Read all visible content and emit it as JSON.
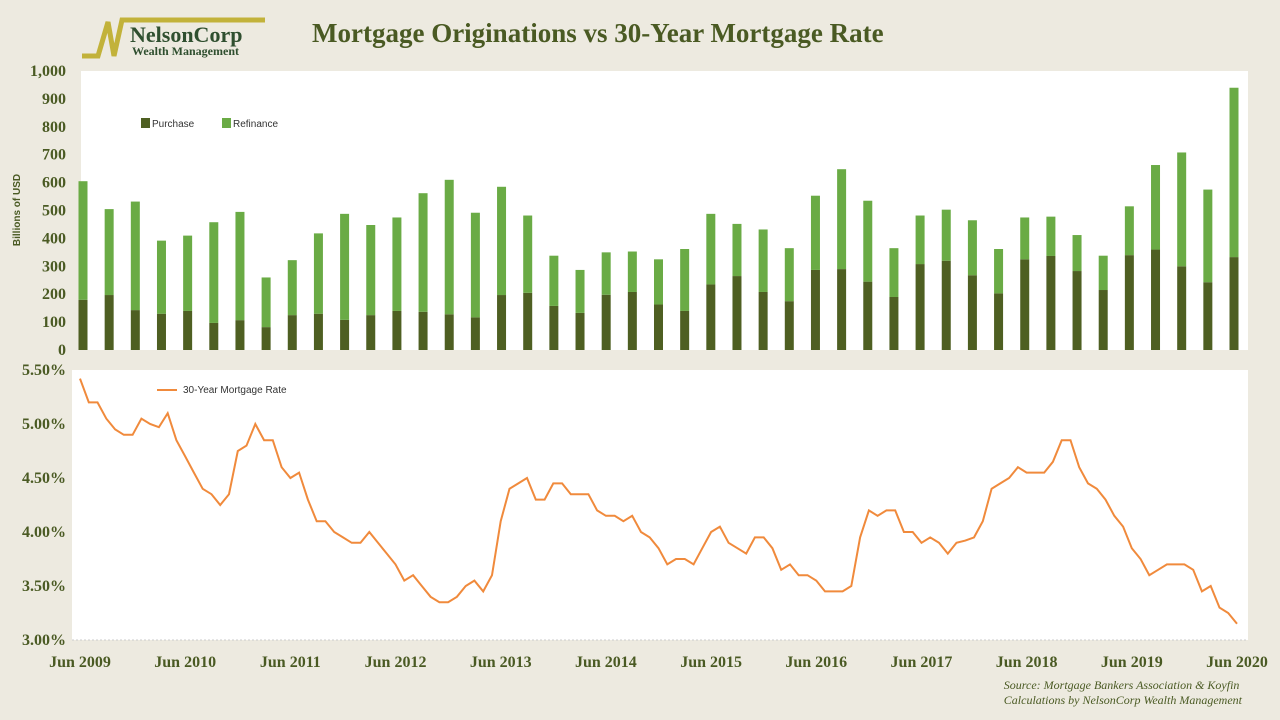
{
  "header": {
    "title": "Mortgage Originations vs 30-Year Mortgage Rate",
    "logo_name": "NelsonCorp",
    "logo_sub": "Wealth Management"
  },
  "source": {
    "line1": "Source: Mortgage Bankers Association & Koyfin",
    "line2": "Calculations by NelsonCorp Wealth Management"
  },
  "colors": {
    "purchase": "#4e5f22",
    "refinance": "#6aab45",
    "rate": "#f08a3c",
    "text": "#4a5a23"
  },
  "chart_data": [
    {
      "type": "bar",
      "stacked": true,
      "ylabel": "Billions of USD",
      "ylim": [
        0,
        1000
      ],
      "yticks": [
        "0",
        "100",
        "200",
        "300",
        "400",
        "500",
        "600",
        "700",
        "800",
        "900",
        "1,000"
      ],
      "legend": [
        "Purchase",
        "Refinance"
      ],
      "legend_placement": "top-left",
      "periods": "quarterly Q2 2009 - Q2 2020",
      "series": [
        {
          "name": "Purchase",
          "values": [
            180,
            197,
            143,
            130,
            140,
            97,
            107,
            82,
            125,
            130,
            108,
            125,
            140,
            137,
            128,
            117,
            197,
            205,
            158,
            133,
            198,
            208,
            163,
            140,
            235,
            265,
            208,
            175,
            287,
            290,
            245,
            190,
            308,
            320,
            268,
            203,
            325,
            337,
            283,
            215,
            340,
            360,
            300,
            243,
            333
          ]
        },
        {
          "name": "Refinance",
          "values": [
            425,
            308,
            389,
            262,
            270,
            361,
            388,
            178,
            197,
            288,
            380,
            323,
            335,
            425,
            482,
            375,
            388,
            277,
            180,
            154,
            152,
            145,
            162,
            222,
            253,
            187,
            224,
            190,
            266,
            358,
            290,
            175,
            174,
            183,
            197,
            159,
            150,
            141,
            129,
            123,
            175,
            303,
            408,
            332,
            607
          ]
        }
      ]
    },
    {
      "type": "line",
      "legend": [
        "30-Year Mortgage Rate"
      ],
      "legend_placement": "top-left",
      "ylim": [
        3.0,
        5.5
      ],
      "yticks": [
        "3.00%",
        "3.50%",
        "4.00%",
        "4.50%",
        "5.00%",
        "5.50%"
      ],
      "xticks": [
        "Jun 2009",
        "Jun 2010",
        "Jun 2011",
        "Jun 2012",
        "Jun 2013",
        "Jun 2014",
        "Jun 2015",
        "Jun 2016",
        "Jun 2017",
        "Jun 2018",
        "Jun 2019",
        "Jun 2020"
      ],
      "x_start": "Jun 2009",
      "frequency": "monthly",
      "values": [
        5.42,
        5.2,
        5.2,
        5.05,
        4.95,
        4.9,
        4.9,
        5.05,
        5.0,
        4.97,
        5.1,
        4.85,
        4.7,
        4.55,
        4.4,
        4.35,
        4.25,
        4.35,
        4.75,
        4.8,
        5.0,
        4.85,
        4.85,
        4.6,
        4.5,
        4.55,
        4.3,
        4.1,
        4.1,
        4.0,
        3.95,
        3.9,
        3.9,
        4.0,
        3.9,
        3.8,
        3.7,
        3.55,
        3.6,
        3.5,
        3.4,
        3.35,
        3.35,
        3.4,
        3.5,
        3.55,
        3.45,
        3.6,
        4.1,
        4.4,
        4.45,
        4.5,
        4.3,
        4.3,
        4.45,
        4.45,
        4.35,
        4.35,
        4.35,
        4.2,
        4.15,
        4.15,
        4.1,
        4.15,
        4.0,
        3.95,
        3.85,
        3.7,
        3.75,
        3.75,
        3.7,
        3.85,
        4.0,
        4.05,
        3.9,
        3.85,
        3.8,
        3.95,
        3.95,
        3.85,
        3.65,
        3.7,
        3.6,
        3.6,
        3.55,
        3.45,
        3.45,
        3.45,
        3.5,
        3.95,
        4.2,
        4.15,
        4.2,
        4.2,
        4.0,
        4.0,
        3.9,
        3.95,
        3.9,
        3.8,
        3.9,
        3.92,
        3.95,
        4.1,
        4.4,
        4.45,
        4.5,
        4.6,
        4.55,
        4.55,
        4.55,
        4.65,
        4.85,
        4.85,
        4.6,
        4.45,
        4.4,
        4.3,
        4.15,
        4.05,
        3.85,
        3.75,
        3.6,
        3.65,
        3.7,
        3.7,
        3.7,
        3.65,
        3.45,
        3.5,
        3.3,
        3.25,
        3.15
      ]
    }
  ]
}
